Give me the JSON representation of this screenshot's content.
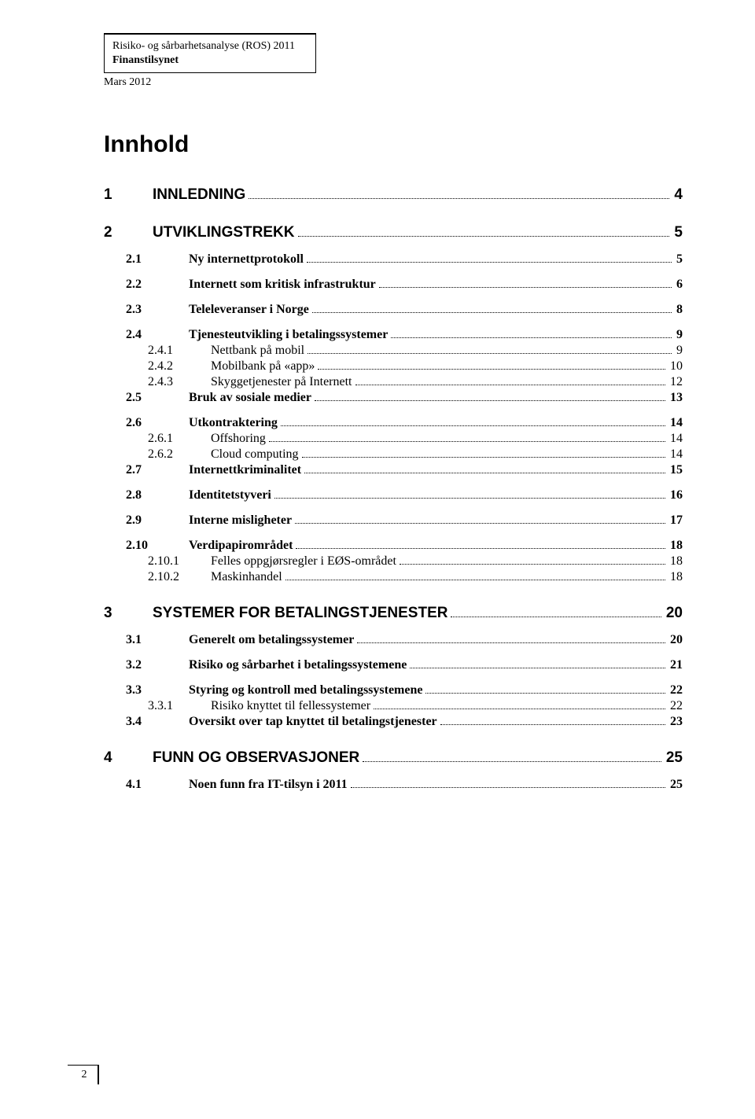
{
  "header": {
    "line1": "Risiko- og sårbarhetsanalyse (ROS) 2011",
    "line2": "Finanstilsynet",
    "line3": "Mars 2012"
  },
  "title": "Innhold",
  "toc": [
    {
      "level": 1,
      "num": "1",
      "title": "INNLEDNING",
      "page": "4"
    },
    {
      "level": 1,
      "num": "2",
      "title": "UTVIKLINGSTREKK",
      "page": "5"
    },
    {
      "level": 2,
      "num": "2.1",
      "title": "Ny internettprotokoll",
      "page": "5"
    },
    {
      "level": 2,
      "num": "2.2",
      "title": "Internett som kritisk infrastruktur",
      "page": "6"
    },
    {
      "level": 2,
      "num": "2.3",
      "title": "Teleleveranser i Norge",
      "page": "8"
    },
    {
      "level": 2,
      "num": "2.4",
      "title": "Tjenesteutvikling i betalingssystemer",
      "page": "9"
    },
    {
      "level": 3,
      "num": "2.4.1",
      "title": "Nettbank på mobil",
      "page": "9"
    },
    {
      "level": 3,
      "num": "2.4.2",
      "title": "Mobilbank på «app»",
      "page": "10"
    },
    {
      "level": 3,
      "num": "2.4.3",
      "title": "Skyggetjenester på Internett",
      "page": "12"
    },
    {
      "level": 2,
      "num": "2.5",
      "title": "Bruk av sosiale medier",
      "page": "13"
    },
    {
      "level": 2,
      "num": "2.6",
      "title": "Utkontraktering",
      "page": "14"
    },
    {
      "level": 3,
      "num": "2.6.1",
      "title": "Offshoring",
      "page": "14"
    },
    {
      "level": 3,
      "num": "2.6.2",
      "title": "Cloud computing",
      "page": "14"
    },
    {
      "level": 2,
      "num": "2.7",
      "title": "Internettkriminalitet",
      "page": "15"
    },
    {
      "level": 2,
      "num": "2.8",
      "title": "Identitetstyveri",
      "page": "16"
    },
    {
      "level": 2,
      "num": "2.9",
      "title": "Interne misligheter",
      "page": "17"
    },
    {
      "level": 2,
      "num": "2.10",
      "title": "Verdipapirområdet",
      "page": "18"
    },
    {
      "level": 3,
      "num": "2.10.1",
      "title": "Felles oppgjørsregler i EØS-området",
      "page": "18"
    },
    {
      "level": 3,
      "num": "2.10.2",
      "title": "Maskinhandel",
      "page": "18"
    },
    {
      "level": 1,
      "num": "3",
      "title": "SYSTEMER FOR BETALINGSTJENESTER",
      "page": "20"
    },
    {
      "level": 2,
      "num": "3.1",
      "title": "Generelt om betalingssystemer",
      "page": "20"
    },
    {
      "level": 2,
      "num": "3.2",
      "title": "Risiko og sårbarhet i betalingssystemene",
      "page": "21"
    },
    {
      "level": 2,
      "num": "3.3",
      "title": "Styring og kontroll med betalingssystemene",
      "page": "22"
    },
    {
      "level": 3,
      "num": "3.3.1",
      "title": "Risiko knyttet til fellessystemer",
      "page": "22"
    },
    {
      "level": 2,
      "num": "3.4",
      "title": "Oversikt over tap knyttet til betalingstjenester",
      "page": "23"
    },
    {
      "level": 1,
      "num": "4",
      "title": "FUNN OG OBSERVASJONER",
      "page": "25"
    },
    {
      "level": 2,
      "num": "4.1",
      "title": "Noen funn fra IT-tilsyn i 2011",
      "page": "25"
    }
  ],
  "page_number": "2"
}
